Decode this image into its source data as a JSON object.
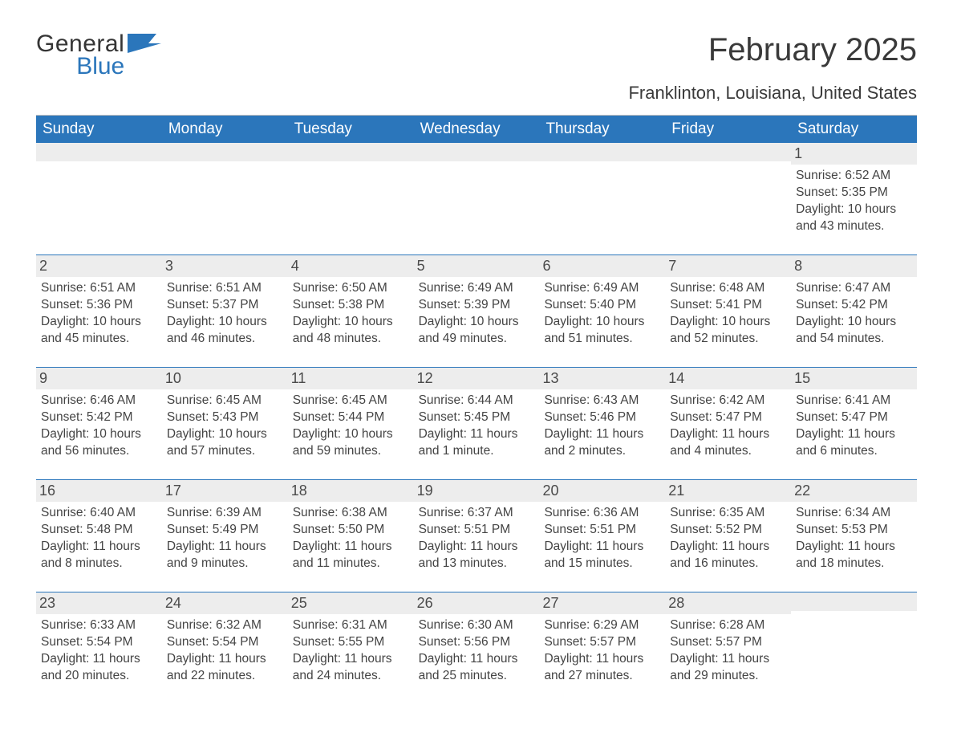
{
  "logo": {
    "general": "General",
    "blue": "Blue",
    "flag_color": "#2b76bb"
  },
  "title": "February 2025",
  "location": "Franklinton, Louisiana, United States",
  "colors": {
    "header_bg": "#2b76bb",
    "header_text": "#ffffff",
    "daynum_bg": "#ededed",
    "week_border": "#2b76bb",
    "body_text": "#444444",
    "title_text": "#3a3a3a",
    "page_bg": "#ffffff"
  },
  "typography": {
    "title_fontsize": 40,
    "location_fontsize": 22,
    "header_fontsize": 19,
    "daynum_fontsize": 18,
    "body_fontsize": 15.5,
    "font_family": "Arial"
  },
  "day_names": [
    "Sunday",
    "Monday",
    "Tuesday",
    "Wednesday",
    "Thursday",
    "Friday",
    "Saturday"
  ],
  "weeks": [
    [
      null,
      null,
      null,
      null,
      null,
      null,
      {
        "n": "1",
        "sunrise": "6:52 AM",
        "sunset": "5:35 PM",
        "daylight": "10 hours and 43 minutes."
      }
    ],
    [
      {
        "n": "2",
        "sunrise": "6:51 AM",
        "sunset": "5:36 PM",
        "daylight": "10 hours and 45 minutes."
      },
      {
        "n": "3",
        "sunrise": "6:51 AM",
        "sunset": "5:37 PM",
        "daylight": "10 hours and 46 minutes."
      },
      {
        "n": "4",
        "sunrise": "6:50 AM",
        "sunset": "5:38 PM",
        "daylight": "10 hours and 48 minutes."
      },
      {
        "n": "5",
        "sunrise": "6:49 AM",
        "sunset": "5:39 PM",
        "daylight": "10 hours and 49 minutes."
      },
      {
        "n": "6",
        "sunrise": "6:49 AM",
        "sunset": "5:40 PM",
        "daylight": "10 hours and 51 minutes."
      },
      {
        "n": "7",
        "sunrise": "6:48 AM",
        "sunset": "5:41 PM",
        "daylight": "10 hours and 52 minutes."
      },
      {
        "n": "8",
        "sunrise": "6:47 AM",
        "sunset": "5:42 PM",
        "daylight": "10 hours and 54 minutes."
      }
    ],
    [
      {
        "n": "9",
        "sunrise": "6:46 AM",
        "sunset": "5:42 PM",
        "daylight": "10 hours and 56 minutes."
      },
      {
        "n": "10",
        "sunrise": "6:45 AM",
        "sunset": "5:43 PM",
        "daylight": "10 hours and 57 minutes."
      },
      {
        "n": "11",
        "sunrise": "6:45 AM",
        "sunset": "5:44 PM",
        "daylight": "10 hours and 59 minutes."
      },
      {
        "n": "12",
        "sunrise": "6:44 AM",
        "sunset": "5:45 PM",
        "daylight": "11 hours and 1 minute."
      },
      {
        "n": "13",
        "sunrise": "6:43 AM",
        "sunset": "5:46 PM",
        "daylight": "11 hours and 2 minutes."
      },
      {
        "n": "14",
        "sunrise": "6:42 AM",
        "sunset": "5:47 PM",
        "daylight": "11 hours and 4 minutes."
      },
      {
        "n": "15",
        "sunrise": "6:41 AM",
        "sunset": "5:47 PM",
        "daylight": "11 hours and 6 minutes."
      }
    ],
    [
      {
        "n": "16",
        "sunrise": "6:40 AM",
        "sunset": "5:48 PM",
        "daylight": "11 hours and 8 minutes."
      },
      {
        "n": "17",
        "sunrise": "6:39 AM",
        "sunset": "5:49 PM",
        "daylight": "11 hours and 9 minutes."
      },
      {
        "n": "18",
        "sunrise": "6:38 AM",
        "sunset": "5:50 PM",
        "daylight": "11 hours and 11 minutes."
      },
      {
        "n": "19",
        "sunrise": "6:37 AM",
        "sunset": "5:51 PM",
        "daylight": "11 hours and 13 minutes."
      },
      {
        "n": "20",
        "sunrise": "6:36 AM",
        "sunset": "5:51 PM",
        "daylight": "11 hours and 15 minutes."
      },
      {
        "n": "21",
        "sunrise": "6:35 AM",
        "sunset": "5:52 PM",
        "daylight": "11 hours and 16 minutes."
      },
      {
        "n": "22",
        "sunrise": "6:34 AM",
        "sunset": "5:53 PM",
        "daylight": "11 hours and 18 minutes."
      }
    ],
    [
      {
        "n": "23",
        "sunrise": "6:33 AM",
        "sunset": "5:54 PM",
        "daylight": "11 hours and 20 minutes."
      },
      {
        "n": "24",
        "sunrise": "6:32 AM",
        "sunset": "5:54 PM",
        "daylight": "11 hours and 22 minutes."
      },
      {
        "n": "25",
        "sunrise": "6:31 AM",
        "sunset": "5:55 PM",
        "daylight": "11 hours and 24 minutes."
      },
      {
        "n": "26",
        "sunrise": "6:30 AM",
        "sunset": "5:56 PM",
        "daylight": "11 hours and 25 minutes."
      },
      {
        "n": "27",
        "sunrise": "6:29 AM",
        "sunset": "5:57 PM",
        "daylight": "11 hours and 27 minutes."
      },
      {
        "n": "28",
        "sunrise": "6:28 AM",
        "sunset": "5:57 PM",
        "daylight": "11 hours and 29 minutes."
      },
      null
    ]
  ],
  "labels": {
    "sunrise": "Sunrise: ",
    "sunset": "Sunset: ",
    "daylight": "Daylight: "
  }
}
